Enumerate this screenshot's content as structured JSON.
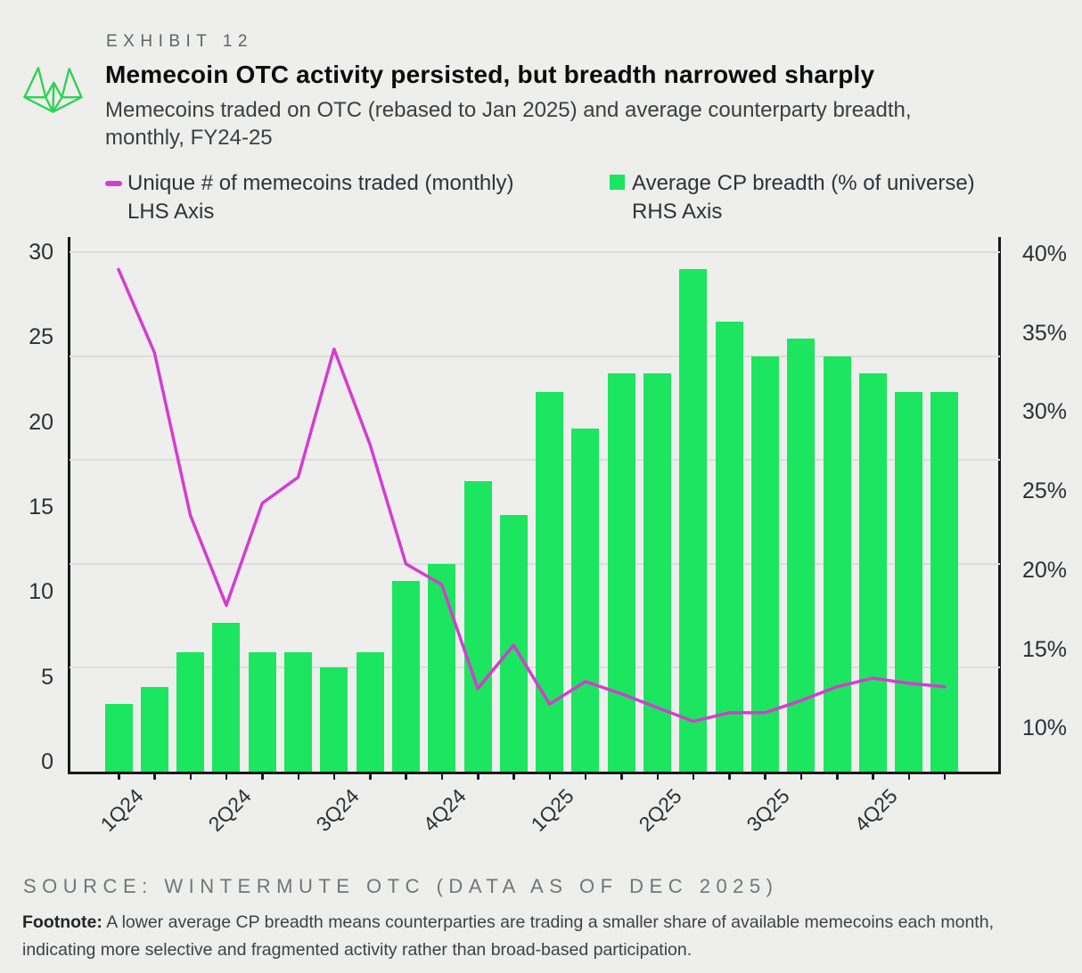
{
  "header": {
    "exhibit": "EXHIBIT 12",
    "title": "Memecoin OTC activity persisted, but breadth narrowed sharply",
    "subtitle_line1": "Memecoins traded on OTC (rebased to Jan 2025) and average counterparty breadth,",
    "subtitle_line2": "monthly,  FY24-25"
  },
  "legend": {
    "items": [
      {
        "label": "Unique # of memecoins traded (monthly)",
        "sublabel": "LHS Axis",
        "marker": "dash",
        "color": "#D43DD0"
      },
      {
        "label": "Average CP breadth (% of universe)",
        "sublabel": "RHS Axis",
        "marker": "square",
        "color": "#1CE55F"
      }
    ]
  },
  "colors": {
    "background": "#EEEEED",
    "bar_green": "#1CE55F",
    "line_magenta": "#D43DD0",
    "logo_green": "#2BD450",
    "gridline": "#DCDDDA",
    "axis": "#17191C"
  },
  "chart_data": {
    "type": "bar+line dual-axis",
    "months": [
      "Jan-24",
      "Feb-24",
      "Mar-24",
      "Apr-24",
      "May-24",
      "Jun-24",
      "Jul-24",
      "Aug-24",
      "Sep-24",
      "Oct-24",
      "Nov-24",
      "Dec-24",
      "Jan-25",
      "Feb-25",
      "Mar-25",
      "Apr-25",
      "May-25",
      "Jun-25",
      "Jul-25",
      "Aug-25",
      "Sep-25",
      "Oct-25",
      "Nov-25",
      "Dec-25"
    ],
    "x_tick_labels": [
      "1Q24",
      "2Q24",
      "3Q24",
      "4Q24",
      "1Q25",
      "2Q25",
      "3Q25",
      "4Q25"
    ],
    "x_tick_every_n_months": 3,
    "series": [
      {
        "name": "Unique # of memecoins traded (monthly)",
        "axis": "LHS",
        "type": "line",
        "color": "#D43DD0",
        "values": [
          29.0,
          24.2,
          14.8,
          9.6,
          15.5,
          17.0,
          24.4,
          18.9,
          12.0,
          10.8,
          4.8,
          7.3,
          3.9,
          5.2,
          4.5,
          3.7,
          2.9,
          3.4,
          3.4,
          4.1,
          4.9,
          5.4,
          5.1,
          4.9
        ]
      },
      {
        "name": "Average CP breadth (% of universe)",
        "axis": "RHS",
        "type": "bar",
        "color": "#1CE55F",
        "values_pct": [
          13.9,
          14.9,
          16.9,
          18.6,
          16.9,
          16.9,
          16.0,
          16.9,
          21.0,
          22.0,
          26.8,
          24.8,
          31.9,
          29.8,
          33.0,
          33.0,
          39.0,
          36.0,
          34.0,
          35.0,
          34.0,
          33.0,
          31.9,
          31.9
        ]
      }
    ],
    "lhs_axis": {
      "tick_labels": [
        "30",
        "25",
        "20",
        "15",
        "10",
        "5",
        "0"
      ],
      "range": [
        0,
        30
      ]
    },
    "rhs_axis": {
      "tick_labels": [
        "40%",
        "35%",
        "30%",
        "25%",
        "20%",
        "15%",
        "10%"
      ],
      "range": [
        10,
        40
      ]
    },
    "grid": "horizontal, 6 evenly spaced lines",
    "legend_position": "top-left, two columns"
  },
  "footer": {
    "source": "SOURCE: WINTERMUTE OTC (DATA AS OF DEC 2025)",
    "footnote_label": "Footnote:",
    "footnote_text": " A lower average CP breadth means counterparties are trading a smaller share of available memecoins each month, indicating more selective and fragmented activity rather than broad-based participation."
  }
}
